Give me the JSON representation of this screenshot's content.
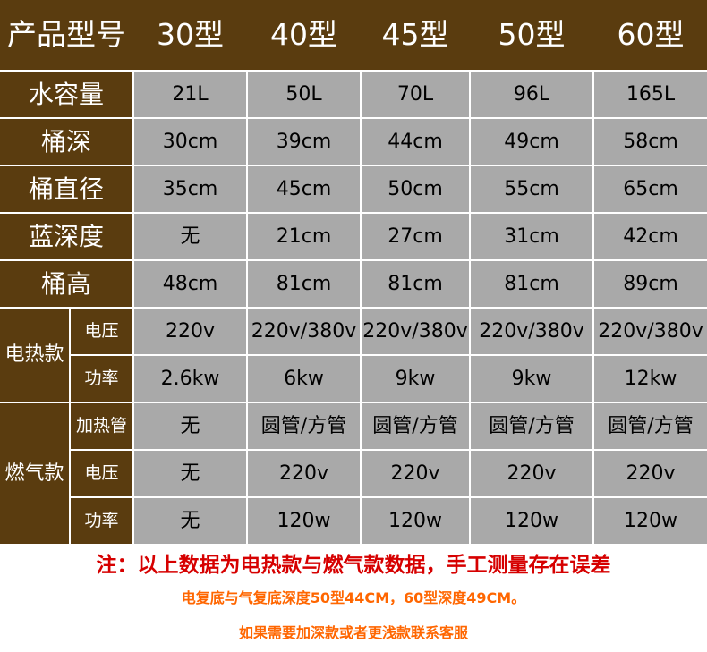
{
  "header": {
    "label": "产品型号",
    "models": [
      "30型",
      "40型",
      "45型",
      "50型",
      "60型"
    ]
  },
  "rows": [
    {
      "label": "水容量",
      "values": [
        "21L",
        "50L",
        "70L",
        "96L",
        "165L"
      ]
    },
    {
      "label": "桶深",
      "values": [
        "30cm",
        "39cm",
        "44cm",
        "49cm",
        "58cm"
      ]
    },
    {
      "label": "桶直径",
      "values": [
        "35cm",
        "45cm",
        "50cm",
        "55cm",
        "65cm"
      ]
    },
    {
      "label": "蓝深度",
      "values": [
        "无",
        "21cm",
        "27cm",
        "31cm",
        "42cm"
      ]
    },
    {
      "label": "桶高",
      "values": [
        "48cm",
        "81cm",
        "81cm",
        "81cm",
        "89cm"
      ]
    }
  ],
  "electric": {
    "label": "电热款",
    "rows": [
      {
        "label": "电压",
        "values": [
          "220v",
          "220v/380v",
          "220v/380v",
          "220v/380v",
          "220v/380v"
        ]
      },
      {
        "label": "功率",
        "values": [
          "2.6kw",
          "6kw",
          "9kw",
          "9kw",
          "12kw"
        ]
      }
    ]
  },
  "gas": {
    "label": "燃气款",
    "rows": [
      {
        "label": "加热管",
        "values": [
          "无",
          "圆管/方管",
          "圆管/方管",
          "圆管/方管",
          "圆管/方管"
        ]
      },
      {
        "label": "电压",
        "values": [
          "无",
          "220v",
          "220v",
          "220v",
          "220v"
        ]
      },
      {
        "label": "功率",
        "values": [
          "无",
          "120w",
          "120w",
          "120w",
          "120w"
        ]
      }
    ]
  },
  "notes": {
    "line1": "注：以上数据为电热款与燃气款数据，手工测量存在误差",
    "line2": "电复底与气复底深度50型44CM，60型深度49CM。",
    "line3": "如果需要加深款或者更浅款联系客服"
  },
  "colors": {
    "header_bg": "#5a3c0f",
    "cell_bg": "#a9a9a9",
    "note_red": "#d60000",
    "note_orange": "#ff6600"
  }
}
